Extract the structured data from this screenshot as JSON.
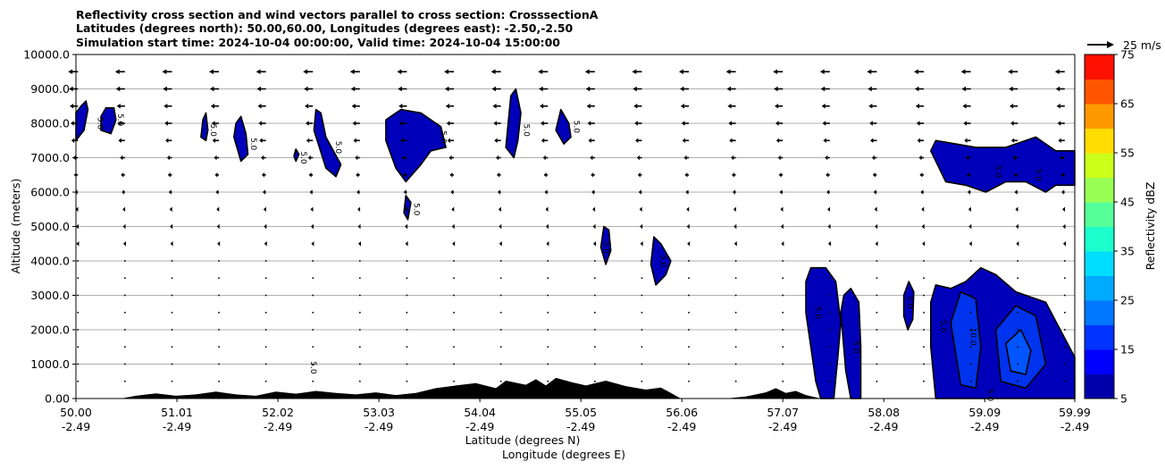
{
  "titles": {
    "line1": "Reflectivity cross section and wind vectors parallel to cross section: CrosssectionA",
    "line2": "Latitudes (degrees north): 50.00,60.00, Longitudes (degrees east): -2.50,-2.50",
    "line3": "Simulation start time: 2024-10-04 00:00:00, Valid time: 2024-10-04 15:00:00"
  },
  "colors": {
    "dbz_fill": "#0000bb",
    "dbz_15": "#0033ee",
    "dbz_20": "#0077ff",
    "terrain": "#000000",
    "grid": "#b0b0b0"
  },
  "chart_data": {
    "type": "heatmap",
    "title": "Reflectivity cross section and wind vectors parallel to cross section: CrosssectionA",
    "xlabel": "Latitude (degrees N)",
    "xlabel2": "Longitude (degrees E)",
    "ylabel": "Altitude (meters)",
    "xlim": [
      50.0,
      59.99
    ],
    "ylim": [
      0,
      10000
    ],
    "grid": "horizontal",
    "x_ticks": [
      {
        "lat": "50.00",
        "lon": "-2.49",
        "value": 50.0
      },
      {
        "lat": "51.01",
        "lon": "-2.49",
        "value": 51.01
      },
      {
        "lat": "52.02",
        "lon": "-2.49",
        "value": 52.02
      },
      {
        "lat": "53.03",
        "lon": "-2.49",
        "value": 53.03
      },
      {
        "lat": "54.04",
        "lon": "-2.49",
        "value": 54.04
      },
      {
        "lat": "55.05",
        "lon": "-2.49",
        "value": 55.05
      },
      {
        "lat": "56.06",
        "lon": "-2.49",
        "value": 56.06
      },
      {
        "lat": "57.07",
        "lon": "-2.49",
        "value": 57.07
      },
      {
        "lat": "58.08",
        "lon": "-2.49",
        "value": 58.08
      },
      {
        "lat": "59.09",
        "lon": "-2.49",
        "value": 59.09
      },
      {
        "lat": "59.99",
        "lon": "-2.49",
        "value": 59.99
      }
    ],
    "y_ticks": [
      {
        "label": "0.00",
        "value": 0
      },
      {
        "label": "1000.0",
        "value": 1000
      },
      {
        "label": "2000.0",
        "value": 2000
      },
      {
        "label": "3000.0",
        "value": 3000
      },
      {
        "label": "4000.0",
        "value": 4000
      },
      {
        "label": "5000.0",
        "value": 5000
      },
      {
        "label": "6000.0",
        "value": 6000
      },
      {
        "label": "7000.0",
        "value": 7000
      },
      {
        "label": "8000.0",
        "value": 8000
      },
      {
        "label": "9000.0",
        "value": 9000
      },
      {
        "label": "10000.0",
        "value": 10000
      }
    ],
    "colorbar": {
      "label": "Reflectivity dBZ",
      "levels": [
        5,
        10,
        15,
        20,
        25,
        30,
        35,
        40,
        45,
        50,
        55,
        60,
        65,
        70,
        75
      ],
      "tick_labels": [
        "5",
        "15",
        "25",
        "35",
        "45",
        "55",
        "65",
        "75"
      ],
      "colors": [
        "#0000aa",
        "#0000ff",
        "#0033ff",
        "#0077ff",
        "#00aaff",
        "#00ddff",
        "#1affcc",
        "#55ff99",
        "#99ff55",
        "#ccff1a",
        "#ffdd00",
        "#ff9900",
        "#ff5500",
        "#ff1100",
        "#aa0000"
      ]
    },
    "wind_key": {
      "label": "25 m/s",
      "speed": 25
    },
    "wind_field": {
      "x_start": 50.02,
      "x_step": 0.47,
      "x_count": 22,
      "levels": [
        {
          "alt": 9500,
          "u": -12
        },
        {
          "alt": 9000,
          "u": -11
        },
        {
          "alt": 8500,
          "u": -10
        },
        {
          "alt": 8000,
          "u": -9
        },
        {
          "alt": 7500,
          "u": -8
        },
        {
          "alt": 7000,
          "u": -6
        },
        {
          "alt": 6500,
          "u": -5
        },
        {
          "alt": 6000,
          "u": -4
        },
        {
          "alt": 5500,
          "u": -3
        },
        {
          "alt": 5000,
          "u": -2.5
        },
        {
          "alt": 4500,
          "u": -2
        },
        {
          "alt": 4000,
          "u": -1.5
        },
        {
          "alt": 3500,
          "u": -1
        },
        {
          "alt": 3000,
          "u": -0.5
        },
        {
          "alt": 2500,
          "u": -0.5
        },
        {
          "alt": 2000,
          "u": -0.5
        },
        {
          "alt": 1500,
          "u": -0.5
        },
        {
          "alt": 1000,
          "u": -0.5
        },
        {
          "alt": 500,
          "u": -0.5
        }
      ]
    },
    "terrain": [
      [
        50.0,
        0
      ],
      [
        50.45,
        0
      ],
      [
        50.6,
        80
      ],
      [
        50.8,
        150
      ],
      [
        51.0,
        80
      ],
      [
        51.2,
        120
      ],
      [
        51.4,
        200
      ],
      [
        51.6,
        120
      ],
      [
        51.8,
        80
      ],
      [
        52.0,
        200
      ],
      [
        52.2,
        140
      ],
      [
        52.4,
        220
      ],
      [
        52.6,
        160
      ],
      [
        52.8,
        120
      ],
      [
        53.0,
        180
      ],
      [
        53.2,
        100
      ],
      [
        53.4,
        160
      ],
      [
        53.6,
        300
      ],
      [
        53.8,
        380
      ],
      [
        54.0,
        450
      ],
      [
        54.2,
        300
      ],
      [
        54.3,
        520
      ],
      [
        54.5,
        400
      ],
      [
        54.6,
        560
      ],
      [
        54.7,
        380
      ],
      [
        54.8,
        600
      ],
      [
        54.95,
        480
      ],
      [
        55.1,
        380
      ],
      [
        55.3,
        520
      ],
      [
        55.5,
        360
      ],
      [
        55.7,
        260
      ],
      [
        55.85,
        320
      ],
      [
        55.95,
        160
      ],
      [
        56.05,
        0
      ],
      [
        56.5,
        0
      ],
      [
        56.7,
        60
      ],
      [
        56.9,
        180
      ],
      [
        57.0,
        300
      ],
      [
        57.1,
        160
      ],
      [
        57.2,
        220
      ],
      [
        57.3,
        100
      ],
      [
        57.45,
        0
      ],
      [
        59.99,
        0
      ]
    ],
    "reflectivity_regions": [
      {
        "level": 5,
        "points": [
          [
            50.0,
            7500
          ],
          [
            50.08,
            7800
          ],
          [
            50.12,
            8400
          ],
          [
            50.1,
            8650
          ],
          [
            50.05,
            8500
          ],
          [
            50.0,
            8300
          ]
        ]
      },
      {
        "level": 5,
        "points": [
          [
            50.25,
            7800
          ],
          [
            50.35,
            7700
          ],
          [
            50.4,
            8100
          ],
          [
            50.38,
            8450
          ],
          [
            50.3,
            8450
          ],
          [
            50.25,
            8200
          ]
        ]
      },
      {
        "level": 5,
        "points": [
          [
            51.25,
            7600
          ],
          [
            51.3,
            7500
          ],
          [
            51.32,
            7800
          ],
          [
            51.3,
            8300
          ],
          [
            51.27,
            8100
          ]
        ]
      },
      {
        "level": 5,
        "points": [
          [
            51.58,
            7600
          ],
          [
            51.65,
            6900
          ],
          [
            51.72,
            7100
          ],
          [
            51.7,
            7700
          ],
          [
            51.65,
            8200
          ],
          [
            51.6,
            8000
          ]
        ]
      },
      {
        "level": 5,
        "points": [
          [
            52.18,
            7050
          ],
          [
            52.2,
            6900
          ],
          [
            52.23,
            7100
          ],
          [
            52.2,
            7250
          ]
        ]
      },
      {
        "level": 5,
        "points": [
          [
            52.38,
            7800
          ],
          [
            52.5,
            6700
          ],
          [
            52.6,
            6450
          ],
          [
            52.65,
            6800
          ],
          [
            52.5,
            7600
          ],
          [
            52.45,
            8300
          ],
          [
            52.4,
            8400
          ]
        ]
      },
      {
        "level": 5,
        "points": [
          [
            53.1,
            7500
          ],
          [
            53.2,
            6700
          ],
          [
            53.3,
            6300
          ],
          [
            53.45,
            6800
          ],
          [
            53.55,
            7200
          ],
          [
            53.7,
            7300
          ],
          [
            53.65,
            7900
          ],
          [
            53.45,
            8300
          ],
          [
            53.25,
            8400
          ],
          [
            53.1,
            8100
          ]
        ]
      },
      {
        "level": 5,
        "points": [
          [
            53.28,
            5400
          ],
          [
            53.32,
            5200
          ],
          [
            53.35,
            5700
          ],
          [
            53.3,
            5900
          ]
        ]
      },
      {
        "level": 5,
        "points": [
          [
            54.3,
            7300
          ],
          [
            54.38,
            7000
          ],
          [
            54.42,
            7500
          ],
          [
            54.45,
            8300
          ],
          [
            54.4,
            9000
          ],
          [
            54.35,
            8800
          ]
        ]
      },
      {
        "level": 5,
        "points": [
          [
            54.8,
            7800
          ],
          [
            54.88,
            7400
          ],
          [
            54.95,
            7600
          ],
          [
            54.93,
            8000
          ],
          [
            54.85,
            8400
          ]
        ]
      },
      {
        "level": 5,
        "points": [
          [
            55.25,
            4400
          ],
          [
            55.3,
            3900
          ],
          [
            55.35,
            4300
          ],
          [
            55.33,
            4900
          ],
          [
            55.28,
            5000
          ]
        ]
      },
      {
        "level": 5,
        "points": [
          [
            55.75,
            3900
          ],
          [
            55.8,
            3300
          ],
          [
            55.9,
            3600
          ],
          [
            55.95,
            4000
          ],
          [
            55.85,
            4500
          ],
          [
            55.78,
            4700
          ]
        ]
      },
      {
        "level": 5,
        "points": [
          [
            58.55,
            7200
          ],
          [
            58.7,
            6300
          ],
          [
            58.9,
            6200
          ],
          [
            59.1,
            6000
          ],
          [
            59.3,
            6300
          ],
          [
            59.5,
            6300
          ],
          [
            59.7,
            6000
          ],
          [
            59.8,
            6200
          ],
          [
            59.99,
            6200
          ],
          [
            59.99,
            7200
          ],
          [
            59.8,
            7200
          ],
          [
            59.6,
            7600
          ],
          [
            59.3,
            7300
          ],
          [
            59.0,
            7300
          ],
          [
            58.8,
            7400
          ],
          [
            58.6,
            7500
          ]
        ]
      },
      {
        "level": 5,
        "points": [
          [
            57.3,
            3400
          ],
          [
            57.3,
            2500
          ],
          [
            57.35,
            1500
          ],
          [
            57.4,
            500
          ],
          [
            57.45,
            0
          ],
          [
            57.58,
            0
          ],
          [
            57.62,
            1200
          ],
          [
            57.65,
            2200
          ],
          [
            57.6,
            3400
          ],
          [
            57.5,
            3800
          ],
          [
            57.35,
            3800
          ]
        ]
      },
      {
        "level": 5,
        "points": [
          [
            57.65,
            2500
          ],
          [
            57.7,
            800
          ],
          [
            57.75,
            0
          ],
          [
            57.85,
            0
          ],
          [
            57.85,
            1500
          ],
          [
            57.83,
            2800
          ],
          [
            57.75,
            3200
          ],
          [
            57.68,
            3000
          ]
        ]
      },
      {
        "level": 5,
        "points": [
          [
            58.28,
            2400
          ],
          [
            58.32,
            2000
          ],
          [
            58.37,
            2300
          ],
          [
            58.38,
            3100
          ],
          [
            58.33,
            3400
          ],
          [
            58.28,
            3000
          ]
        ]
      },
      {
        "level": 5,
        "points": [
          [
            58.55,
            2800
          ],
          [
            58.55,
            1500
          ],
          [
            58.6,
            0
          ],
          [
            59.99,
            0
          ],
          [
            59.99,
            1200
          ],
          [
            59.7,
            2800
          ],
          [
            59.4,
            3100
          ],
          [
            59.2,
            3600
          ],
          [
            59.05,
            3800
          ],
          [
            58.9,
            3400
          ],
          [
            58.75,
            3200
          ],
          [
            58.6,
            3300
          ]
        ]
      },
      {
        "level": 15,
        "points": [
          [
            58.75,
            2200
          ],
          [
            58.85,
            400
          ],
          [
            59.0,
            300
          ],
          [
            59.05,
            1500
          ],
          [
            59.0,
            2900
          ],
          [
            58.85,
            3100
          ]
        ]
      },
      {
        "level": 15,
        "points": [
          [
            59.2,
            2000
          ],
          [
            59.25,
            500
          ],
          [
            59.5,
            300
          ],
          [
            59.7,
            1000
          ],
          [
            59.6,
            2400
          ],
          [
            59.4,
            2700
          ]
        ]
      },
      {
        "level": 20,
        "points": [
          [
            59.3,
            1600
          ],
          [
            59.35,
            800
          ],
          [
            59.5,
            700
          ],
          [
            59.55,
            1400
          ],
          [
            59.45,
            2000
          ]
        ]
      }
    ],
    "contour_labels": [
      {
        "text": "5.0",
        "x": 50.22,
        "y": 8000,
        "rot": 90
      },
      {
        "text": "5.0",
        "x": 50.42,
        "y": 8100,
        "rot": 90
      },
      {
        "text": "5.0",
        "x": 51.35,
        "y": 7800,
        "rot": 90
      },
      {
        "text": "5.0",
        "x": 51.75,
        "y": 7400,
        "rot": 90
      },
      {
        "text": "5.0",
        "x": 52.25,
        "y": 7000,
        "rot": 90
      },
      {
        "text": "5.0",
        "x": 52.6,
        "y": 7300,
        "rot": 90
      },
      {
        "text": "5.0",
        "x": 52.35,
        "y": 900,
        "rot": 90
      },
      {
        "text": "5.0",
        "x": 53.65,
        "y": 7600,
        "rot": 90
      },
      {
        "text": "5.0",
        "x": 53.38,
        "y": 5500,
        "rot": 90
      },
      {
        "text": "5.0",
        "x": 54.48,
        "y": 7800,
        "rot": 90
      },
      {
        "text": "5.0",
        "x": 54.98,
        "y": 7900,
        "rot": 90
      },
      {
        "text": "5.0",
        "x": 55.28,
        "y": 4400,
        "rot": 90
      },
      {
        "text": "5.0",
        "x": 55.85,
        "y": 4000,
        "rot": 90
      },
      {
        "text": "5.0",
        "x": 57.4,
        "y": 2500,
        "rot": 90
      },
      {
        "text": "5.0",
        "x": 57.78,
        "y": 1500,
        "rot": 90
      },
      {
        "text": "5.0",
        "x": 58.32,
        "y": 2800,
        "rot": 90
      },
      {
        "text": "5.0",
        "x": 58.65,
        "y": 2100,
        "rot": 90
      },
      {
        "text": "10.0",
        "x": 58.95,
        "y": 1800,
        "rot": 90
      },
      {
        "text": "5.0",
        "x": 59.2,
        "y": 6600,
        "rot": 90
      },
      {
        "text": "5.0",
        "x": 59.6,
        "y": 6500,
        "rot": 90
      },
      {
        "text": "5.0",
        "x": 59.12,
        "y": 100,
        "rot": 90
      }
    ]
  }
}
